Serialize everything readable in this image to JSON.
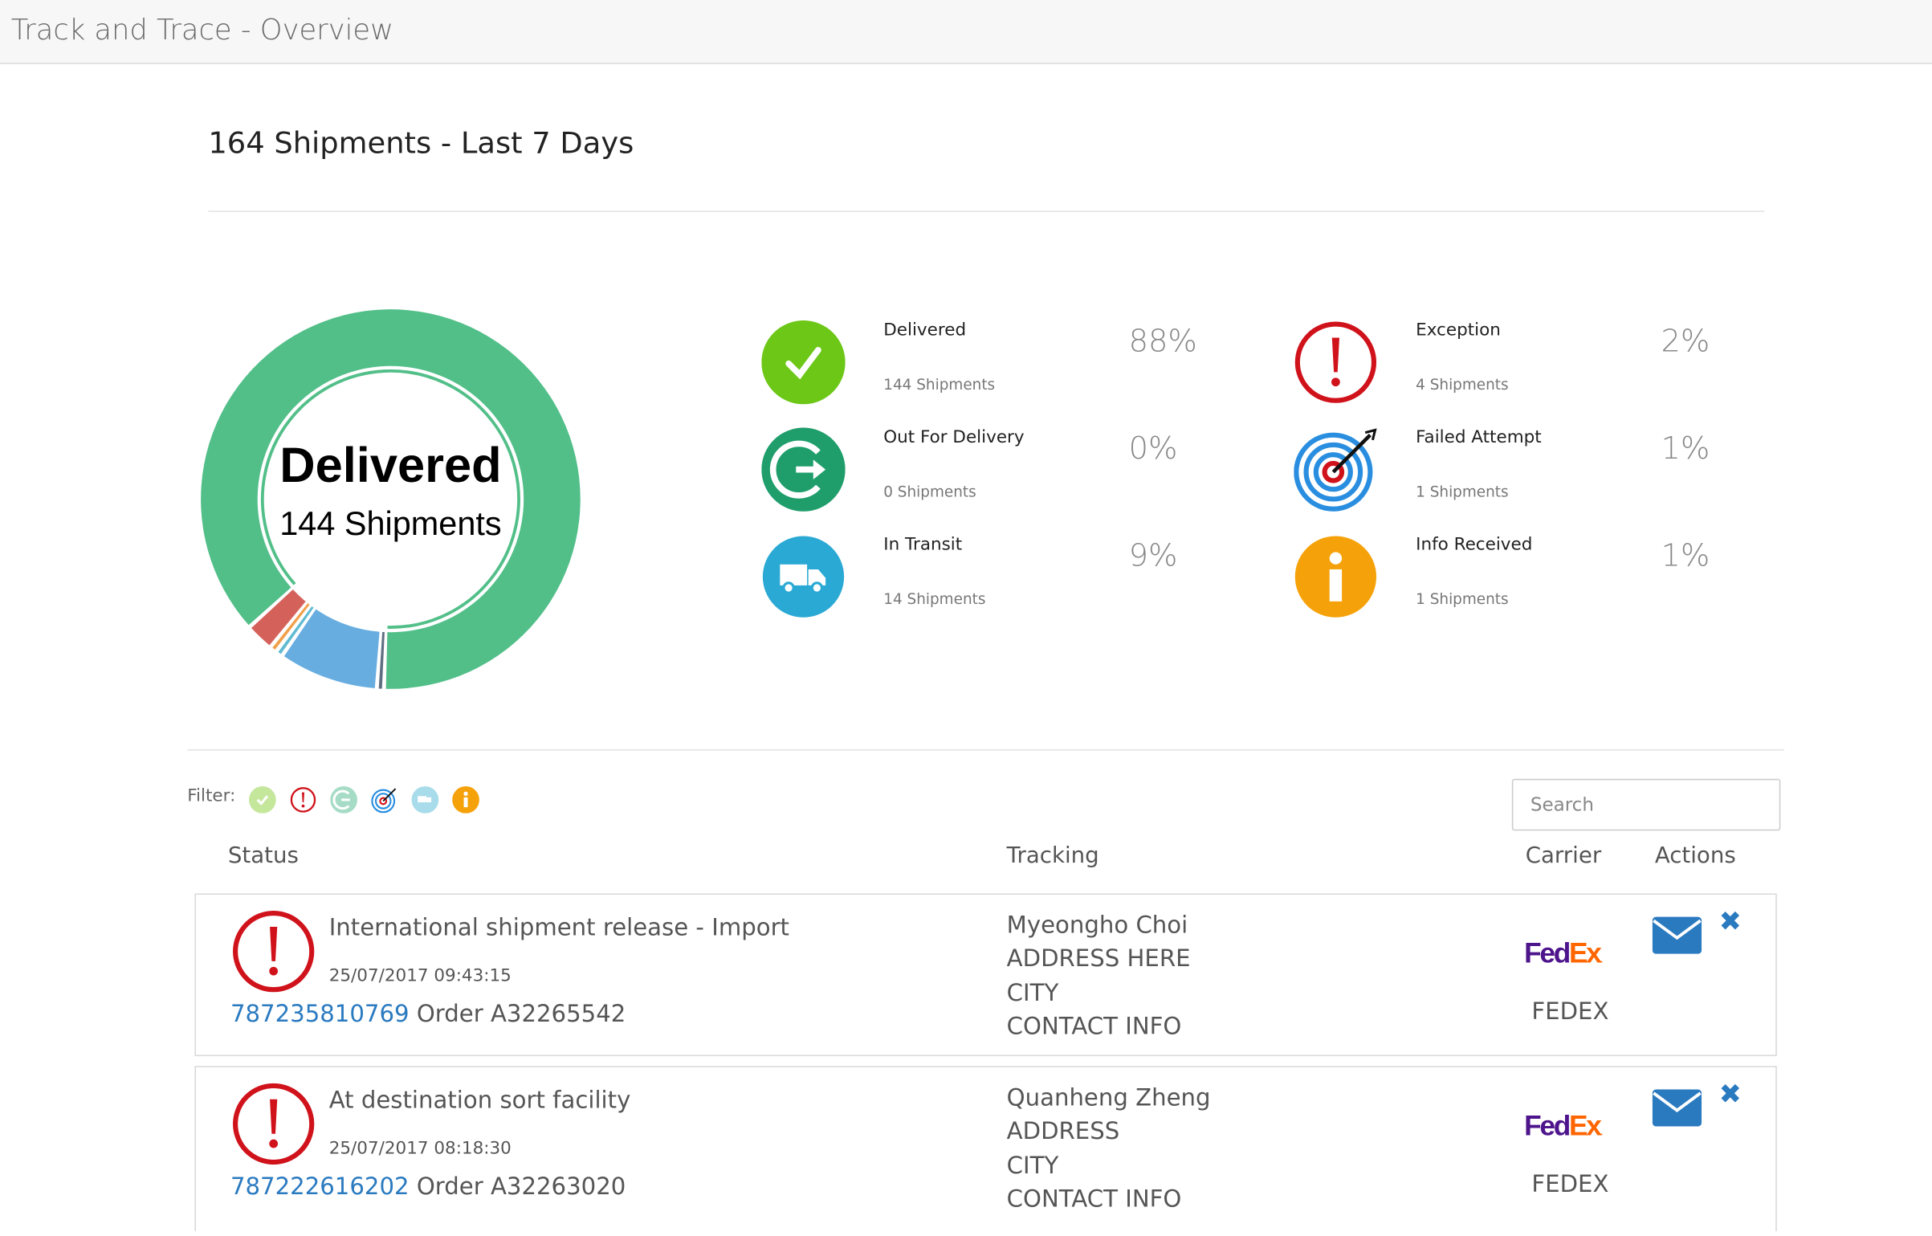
{
  "header": {
    "title": "Track and Trace - Overview"
  },
  "summary": {
    "title": "164 Shipments - Last 7 Days"
  },
  "donut_center": {
    "label": "Delivered",
    "sub": "144 Shipments"
  },
  "chart_data": {
    "type": "pie",
    "donut": true,
    "categories": [
      "",
      "In Transit",
      "Info Received",
      "Failed Attempt",
      "Exception",
      "Delivered"
    ],
    "values": [
      1,
      14,
      1,
      1,
      4,
      144
    ],
    "colors": [
      "#5f6e80",
      "#68ade0",
      "#5fbbd2",
      "#f0a04b",
      "#d4625a",
      "#52bf89"
    ],
    "center_text": "Delivered"
  },
  "stats": [
    {
      "label": "Delivered",
      "sub": "144 Shipments",
      "pct": "88%",
      "icon": "check-icon",
      "color": "#6cc717"
    },
    {
      "label": "Out For Delivery",
      "sub": "0 Shipments",
      "pct": "0%",
      "icon": "out-for-delivery-icon",
      "color": "#1f9e6c"
    },
    {
      "label": "In Transit",
      "sub": "14 Shipments",
      "pct": "9%",
      "icon": "truck-icon",
      "color": "#2aa9d4"
    },
    {
      "label": "Exception",
      "sub": "4 Shipments",
      "pct": "2%",
      "icon": "exclamation-icon",
      "color": "#d0121b"
    },
    {
      "label": "Failed Attempt",
      "sub": "1 Shipments",
      "pct": "1%",
      "icon": "target-icon",
      "color": "#2a8ee0"
    },
    {
      "label": "Info Received",
      "sub": "1 Shipments",
      "pct": "1%",
      "icon": "info-icon",
      "color": "#f5a20a"
    }
  ],
  "filter": {
    "label": "Filter:"
  },
  "search": {
    "placeholder": "Search",
    "value": ""
  },
  "table": {
    "headers": [
      "Status",
      "Tracking",
      "Carrier",
      "Actions"
    ],
    "rows": [
      {
        "status": "International shipment release - Import",
        "timestamp": "25/07/2017 09:43:15",
        "tracking": "787235810769",
        "order": "Order A32265542",
        "address": [
          "Myeongho Choi",
          "ADDRESS HERE",
          "CITY",
          "CONTACT INFO"
        ],
        "carrier": "FEDEX",
        "logo": "FedEx"
      },
      {
        "status": "At destination sort facility",
        "timestamp": "25/07/2017 08:18:30",
        "tracking": "787222616202",
        "order": "Order A32263020",
        "address": [
          "Quanheng Zheng",
          "ADDRESS",
          "CITY",
          "CONTACT INFO"
        ],
        "carrier": "FEDEX",
        "logo": "FedEx"
      }
    ]
  }
}
